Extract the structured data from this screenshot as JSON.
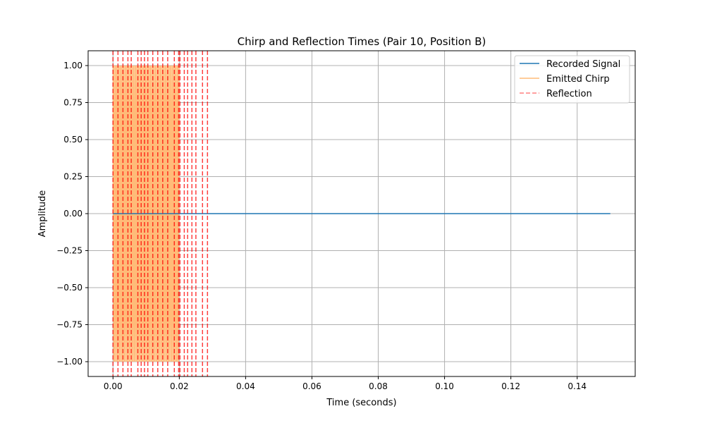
{
  "chart_data": {
    "type": "line",
    "title": "Chirp and Reflection Times (Pair 10, Position B)",
    "xlabel": "Time (seconds)",
    "ylabel": "Amplitude",
    "xlim": [
      -0.0075,
      0.1575
    ],
    "ylim": [
      -1.1,
      1.1
    ],
    "xticks": [
      0.0,
      0.02,
      0.04,
      0.06,
      0.08,
      0.1,
      0.12,
      0.14
    ],
    "xtick_labels": [
      "0.00",
      "0.02",
      "0.04",
      "0.06",
      "0.08",
      "0.10",
      "0.12",
      "0.14"
    ],
    "yticks": [
      -1.0,
      -0.75,
      -0.5,
      -0.25,
      0.0,
      0.25,
      0.5,
      0.75,
      1.0
    ],
    "ytick_labels": [
      "−1.00",
      "−0.75",
      "−0.50",
      "−0.25",
      "0.00",
      "0.25",
      "0.50",
      "0.75",
      "1.00"
    ],
    "grid": true,
    "legend_position": "top-right",
    "series": [
      {
        "name": "Recorded Signal",
        "kind": "line",
        "color": "#1f77b4",
        "x": [
          0.0,
          0.15
        ],
        "y": [
          0.0,
          0.0
        ]
      },
      {
        "name": "Emitted Chirp",
        "kind": "dense-oscillation",
        "color": "#ffbb78",
        "x_range": [
          0.0,
          0.02
        ],
        "amplitude": 1.0
      },
      {
        "name": "Reflection",
        "kind": "vertical-lines",
        "color": "#ff0000",
        "style": "dashed",
        "x": [
          0.0,
          0.0015,
          0.003,
          0.0045,
          0.0055,
          0.0075,
          0.0085,
          0.0095,
          0.0105,
          0.012,
          0.0135,
          0.015,
          0.0165,
          0.0185,
          0.0198,
          0.0202,
          0.0215,
          0.0225,
          0.0238,
          0.025,
          0.027,
          0.0285
        ]
      }
    ]
  }
}
